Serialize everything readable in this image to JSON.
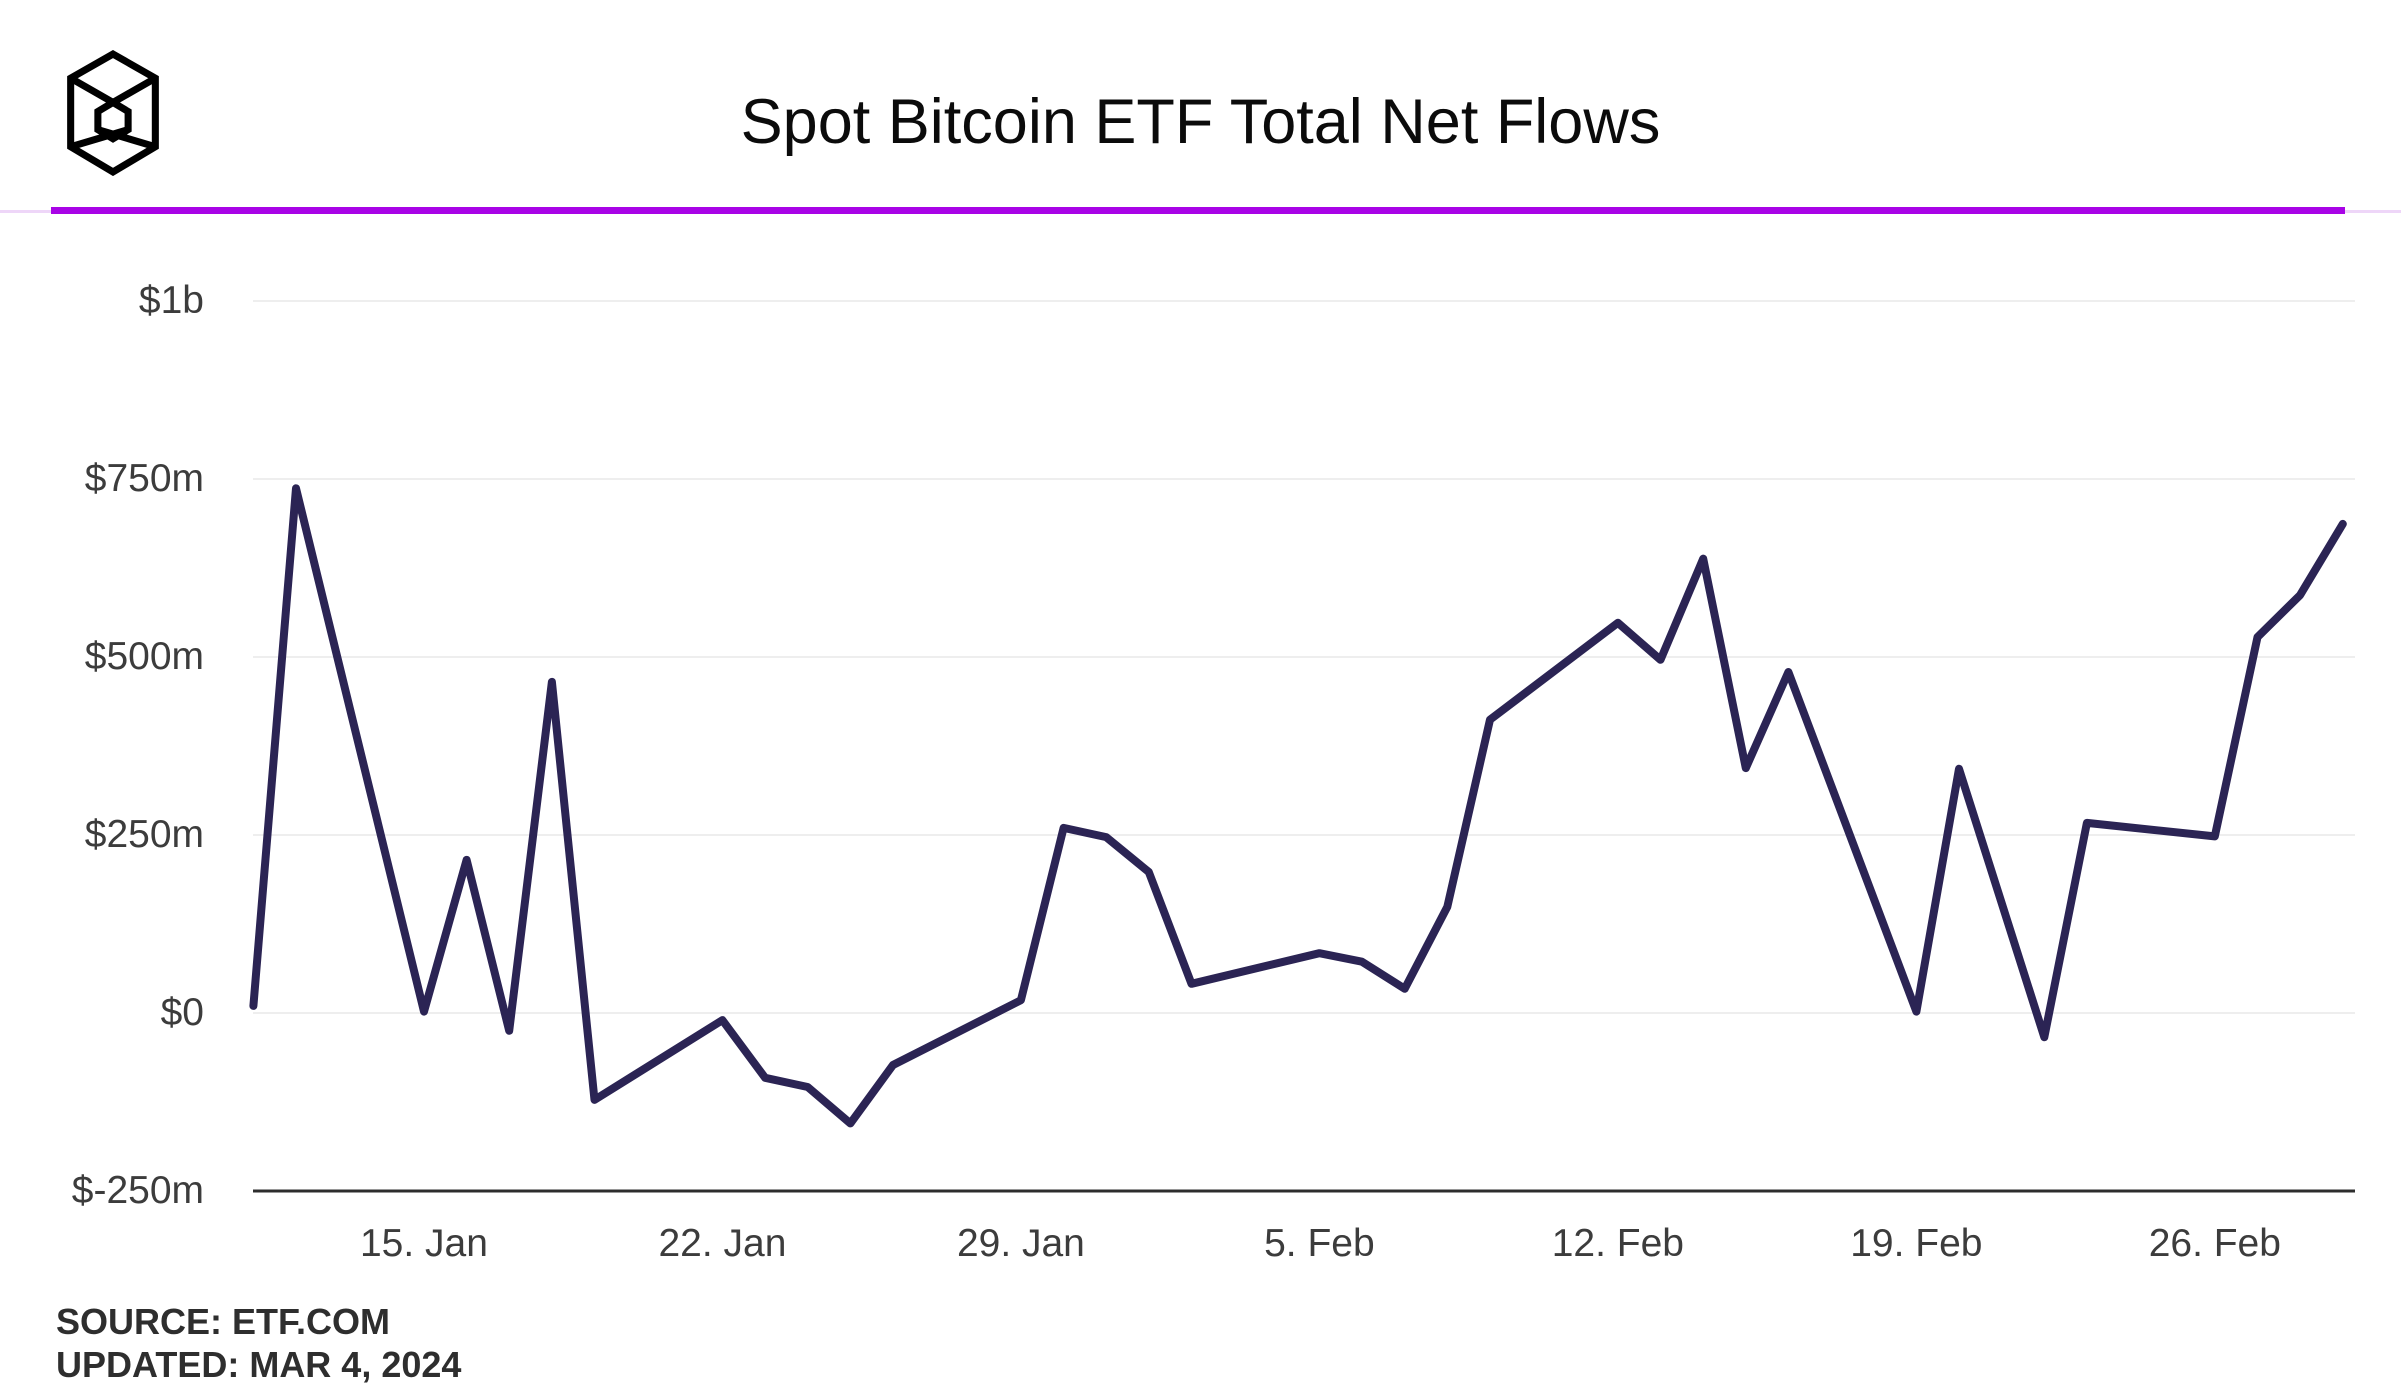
{
  "header": {
    "title": "Spot Bitcoin ETF Total Net Flows",
    "logo_icon": "wireframe-cube-logo",
    "accent_color": "#a803e6"
  },
  "footer": {
    "source_line": "SOURCE: ETF.COM",
    "updated_line": "UPDATED: MAR 4, 2024"
  },
  "chart_data": {
    "type": "line",
    "title": "Spot Bitcoin ETF Total Net Flows",
    "series_name": "Total net flows",
    "unit": "$m",
    "line_color": "#2b2454",
    "grid": true,
    "legend": false,
    "ylim": [
      -250,
      1000
    ],
    "y_ticks": [
      {
        "label": "$1b",
        "value": 1000
      },
      {
        "label": "$750m",
        "value": 750
      },
      {
        "label": "$500m",
        "value": 500
      },
      {
        "label": "$250m",
        "value": 250
      },
      {
        "label": "$0",
        "value": 0
      },
      {
        "label": "$-250m",
        "value": -250
      }
    ],
    "x_ticks": [
      {
        "label": "15. Jan",
        "day": 4
      },
      {
        "label": "22. Jan",
        "day": 11
      },
      {
        "label": "29. Jan",
        "day": 18
      },
      {
        "label": "5. Feb",
        "day": 25
      },
      {
        "label": "12. Feb",
        "day": 32
      },
      {
        "label": "19. Feb",
        "day": 39
      },
      {
        "label": "26. Feb",
        "day": 46
      }
    ],
    "points": [
      {
        "date": "Jan 11",
        "day": 0,
        "value": 10
      },
      {
        "date": "Jan 12",
        "day": 1,
        "value": 737
      },
      {
        "date": "Jan 15",
        "day": 4,
        "value": 2
      },
      {
        "date": "Jan 16",
        "day": 5,
        "value": 215
      },
      {
        "date": "Jan 17",
        "day": 6,
        "value": -25
      },
      {
        "date": "Jan 18",
        "day": 7,
        "value": 465
      },
      {
        "date": "Jan 19",
        "day": 8,
        "value": -122
      },
      {
        "date": "Jan 22",
        "day": 11,
        "value": -10
      },
      {
        "date": "Jan 23",
        "day": 12,
        "value": -91
      },
      {
        "date": "Jan 24",
        "day": 13,
        "value": -104
      },
      {
        "date": "Jan 25",
        "day": 14,
        "value": -155
      },
      {
        "date": "Jan 26",
        "day": 15,
        "value": -73
      },
      {
        "date": "Jan 29",
        "day": 18,
        "value": 18
      },
      {
        "date": "Jan 30",
        "day": 19,
        "value": 260
      },
      {
        "date": "Jan 31",
        "day": 20,
        "value": 247
      },
      {
        "date": "Feb 1",
        "day": 21,
        "value": 198
      },
      {
        "date": "Feb 2",
        "day": 22,
        "value": 41
      },
      {
        "date": "Feb 5",
        "day": 25,
        "value": 84
      },
      {
        "date": "Feb 6",
        "day": 26,
        "value": 72
      },
      {
        "date": "Feb 7",
        "day": 27,
        "value": 34
      },
      {
        "date": "Feb 8",
        "day": 28,
        "value": 149
      },
      {
        "date": "Feb 9",
        "day": 29,
        "value": 412
      },
      {
        "date": "Feb 12",
        "day": 32,
        "value": 548
      },
      {
        "date": "Feb 13",
        "day": 33,
        "value": 496
      },
      {
        "date": "Feb 14",
        "day": 34,
        "value": 638
      },
      {
        "date": "Feb 15",
        "day": 35,
        "value": 344
      },
      {
        "date": "Feb 16",
        "day": 36,
        "value": 479
      },
      {
        "date": "Feb 19",
        "day": 39,
        "value": 2
      },
      {
        "date": "Feb 20",
        "day": 40,
        "value": 343
      },
      {
        "date": "Feb 22",
        "day": 42,
        "value": -34
      },
      {
        "date": "Feb 23",
        "day": 43,
        "value": 267
      },
      {
        "date": "Feb 26",
        "day": 46,
        "value": 248
      },
      {
        "date": "Feb 27",
        "day": 47,
        "value": 528
      },
      {
        "date": "Feb 28",
        "day": 48,
        "value": 587
      },
      {
        "date": "Feb 29",
        "day": 49,
        "value": 687
      }
    ]
  }
}
